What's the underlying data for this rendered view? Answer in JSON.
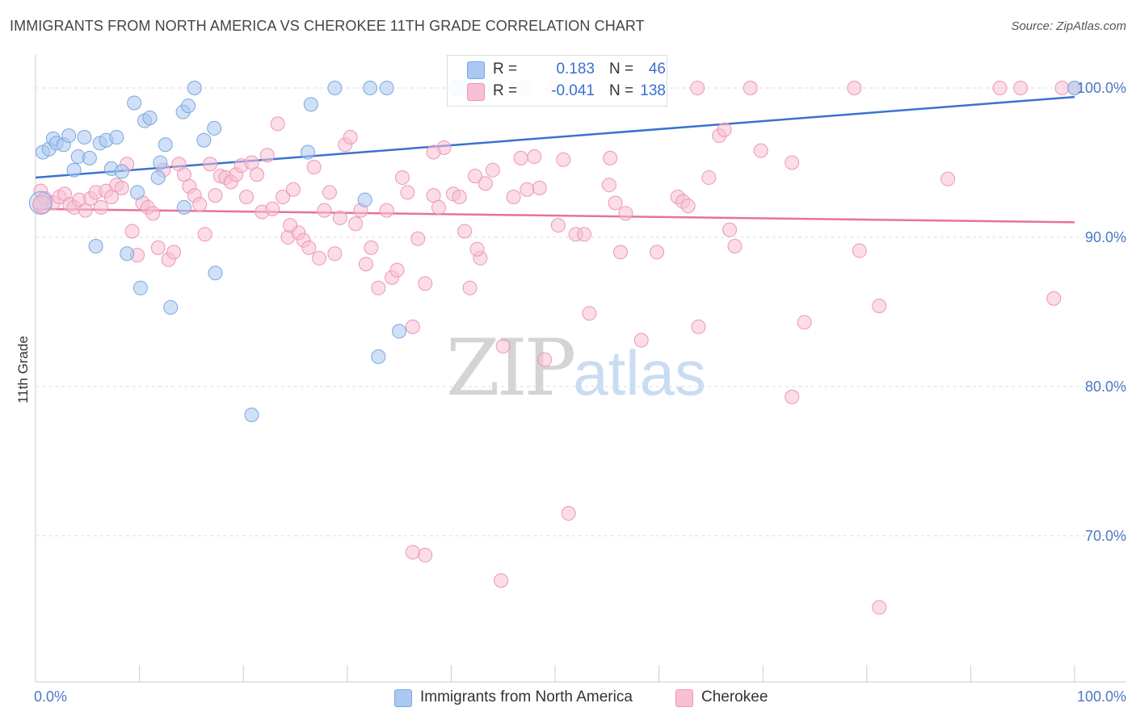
{
  "header": {
    "title": "IMMIGRANTS FROM NORTH AMERICA VS CHEROKEE 11TH GRADE CORRELATION CHART",
    "source": "Source: ZipAtlas.com"
  },
  "colors": {
    "blue_fill": "#aac8f0",
    "blue_stroke": "#7aa6e0",
    "blue_line": "#3a72d0",
    "pink_fill": "#f8c0d4",
    "pink_stroke": "#ec97b6",
    "pink_line": "#e57399",
    "grid": "#dddddd",
    "tick_text": "#4a78c8"
  },
  "legend_top": {
    "rows": [
      {
        "r_label": "R =",
        "r_value": "0.183",
        "n_label": "N =",
        "n_value": "46"
      },
      {
        "r_label": "R =",
        "r_value": "-0.041",
        "n_label": "N =",
        "n_value": "138"
      }
    ]
  },
  "watermark": {
    "zip": "ZIP",
    "atlas": "atlas"
  },
  "chart_data": {
    "type": "scatter",
    "title": "IMMIGRANTS FROM NORTH AMERICA VS CHEROKEE 11TH GRADE CORRELATION CHART",
    "xlabel": "",
    "ylabel": "11th Grade",
    "xlim": [
      0,
      100
    ],
    "ylim": [
      60.2,
      102
    ],
    "x_tick_labels": [
      "0.0%",
      "100.0%"
    ],
    "y_ticks": [
      70,
      80,
      90,
      100
    ],
    "y_tick_labels": [
      "70.0%",
      "80.0%",
      "90.0%",
      "100.0%"
    ],
    "legend": [
      "Immigrants from North America",
      "Cherokee"
    ],
    "series": [
      {
        "name": "Immigrants from North America",
        "color": "#aac8f0",
        "trend": {
          "x": [
            0,
            100
          ],
          "y": [
            94.0,
            99.4
          ]
        },
        "points": [
          [
            0.7,
            95.7
          ],
          [
            1.3,
            95.9
          ],
          [
            1.7,
            96.6
          ],
          [
            2.0,
            96.3
          ],
          [
            2.7,
            96.2
          ],
          [
            3.2,
            96.8
          ],
          [
            3.7,
            94.5
          ],
          [
            4.1,
            95.4
          ],
          [
            4.7,
            96.7
          ],
          [
            5.2,
            95.3
          ],
          [
            6.2,
            96.3
          ],
          [
            6.8,
            96.5
          ],
          [
            7.3,
            94.6
          ],
          [
            7.8,
            96.7
          ],
          [
            8.3,
            94.4
          ],
          [
            9.5,
            99.0
          ],
          [
            10.5,
            97.8
          ],
          [
            11.0,
            98.0
          ],
          [
            12.0,
            95.0
          ],
          [
            12.5,
            96.2
          ],
          [
            14.2,
            98.4
          ],
          [
            14.7,
            98.8
          ],
          [
            15.3,
            100.0
          ],
          [
            16.2,
            96.5
          ],
          [
            17.2,
            97.3
          ],
          [
            11.8,
            94.0
          ],
          [
            14.3,
            92.0
          ],
          [
            9.8,
            93.0
          ],
          [
            8.8,
            88.9
          ],
          [
            5.8,
            89.4
          ],
          [
            10.1,
            86.6
          ],
          [
            13.0,
            85.3
          ],
          [
            17.3,
            87.6
          ],
          [
            20.8,
            78.1
          ],
          [
            26.5,
            98.9
          ],
          [
            26.2,
            95.7
          ],
          [
            28.8,
            100.0
          ],
          [
            32.2,
            100.0
          ],
          [
            33.8,
            100.0
          ],
          [
            31.7,
            92.5
          ],
          [
            35.0,
            83.7
          ],
          [
            33.0,
            82.0
          ],
          [
            40.5,
            100.0
          ],
          [
            41.2,
            100.0
          ],
          [
            43.0,
            100.0
          ],
          [
            100.0,
            100.0
          ]
        ]
      },
      {
        "name": "Cherokee",
        "color": "#f8c0d4",
        "trend": {
          "x": [
            0,
            100
          ],
          "y": [
            91.9,
            91.0
          ]
        },
        "points": [
          [
            0.4,
            92.2
          ],
          [
            0.5,
            93.1
          ],
          [
            0.9,
            92.6
          ],
          [
            1.7,
            92.3
          ],
          [
            2.3,
            92.7
          ],
          [
            2.8,
            92.9
          ],
          [
            3.3,
            92.2
          ],
          [
            3.7,
            92.0
          ],
          [
            4.2,
            92.5
          ],
          [
            4.8,
            91.8
          ],
          [
            5.3,
            92.6
          ],
          [
            5.8,
            93.0
          ],
          [
            6.3,
            92.0
          ],
          [
            6.8,
            93.1
          ],
          [
            7.3,
            92.7
          ],
          [
            7.8,
            93.5
          ],
          [
            8.3,
            93.3
          ],
          [
            8.8,
            94.9
          ],
          [
            9.3,
            90.4
          ],
          [
            9.8,
            88.8
          ],
          [
            10.3,
            92.3
          ],
          [
            10.8,
            92.0
          ],
          [
            11.3,
            91.6
          ],
          [
            11.8,
            89.3
          ],
          [
            12.3,
            94.5
          ],
          [
            12.8,
            88.5
          ],
          [
            13.3,
            89.0
          ],
          [
            13.8,
            94.9
          ],
          [
            14.3,
            94.2
          ],
          [
            14.8,
            93.4
          ],
          [
            15.3,
            92.8
          ],
          [
            15.8,
            92.2
          ],
          [
            16.3,
            90.2
          ],
          [
            16.8,
            94.9
          ],
          [
            17.3,
            92.8
          ],
          [
            17.8,
            94.1
          ],
          [
            18.3,
            94.0
          ],
          [
            18.8,
            93.7
          ],
          [
            19.3,
            94.2
          ],
          [
            19.8,
            94.8
          ],
          [
            20.3,
            92.7
          ],
          [
            20.8,
            95.0
          ],
          [
            21.3,
            94.2
          ],
          [
            21.8,
            91.7
          ],
          [
            22.3,
            95.5
          ],
          [
            22.8,
            91.9
          ],
          [
            23.3,
            97.6
          ],
          [
            23.8,
            92.7
          ],
          [
            24.3,
            90.0
          ],
          [
            24.8,
            93.2
          ],
          [
            25.3,
            90.3
          ],
          [
            25.8,
            89.8
          ],
          [
            26.3,
            89.3
          ],
          [
            26.8,
            94.7
          ],
          [
            27.3,
            88.6
          ],
          [
            27.8,
            91.8
          ],
          [
            28.3,
            93.0
          ],
          [
            28.8,
            88.9
          ],
          [
            29.3,
            91.3
          ],
          [
            29.8,
            96.2
          ],
          [
            30.3,
            96.7
          ],
          [
            30.8,
            90.9
          ],
          [
            31.3,
            91.8
          ],
          [
            31.8,
            88.2
          ],
          [
            32.3,
            89.3
          ],
          [
            33.0,
            86.6
          ],
          [
            33.8,
            91.8
          ],
          [
            34.3,
            87.3
          ],
          [
            34.8,
            87.8
          ],
          [
            35.3,
            94.0
          ],
          [
            35.8,
            93.0
          ],
          [
            36.3,
            84.0
          ],
          [
            36.8,
            89.9
          ],
          [
            37.5,
            86.9
          ],
          [
            38.3,
            92.8
          ],
          [
            38.8,
            92.0
          ],
          [
            39.3,
            96.0
          ],
          [
            40.2,
            92.9
          ],
          [
            40.8,
            92.7
          ],
          [
            41.3,
            90.4
          ],
          [
            41.8,
            86.6
          ],
          [
            42.3,
            94.1
          ],
          [
            42.8,
            88.6
          ],
          [
            43.3,
            93.6
          ],
          [
            44.0,
            94.5
          ],
          [
            45.0,
            82.7
          ],
          [
            46.0,
            92.7
          ],
          [
            46.7,
            95.3
          ],
          [
            47.3,
            93.2
          ],
          [
            48.0,
            95.4
          ],
          [
            48.5,
            93.3
          ],
          [
            49.0,
            81.8
          ],
          [
            50.3,
            90.8
          ],
          [
            50.8,
            95.2
          ],
          [
            51.3,
            71.5
          ],
          [
            52.0,
            90.2
          ],
          [
            52.8,
            90.2
          ],
          [
            53.3,
            84.9
          ],
          [
            55.2,
            93.5
          ],
          [
            55.8,
            92.3
          ],
          [
            56.3,
            89.0
          ],
          [
            56.8,
            91.6
          ],
          [
            58.3,
            83.1
          ],
          [
            59.8,
            89.0
          ],
          [
            61.8,
            92.7
          ],
          [
            62.3,
            92.4
          ],
          [
            62.8,
            92.1
          ],
          [
            63.8,
            84.0
          ],
          [
            64.8,
            94.0
          ],
          [
            65.8,
            96.8
          ],
          [
            66.3,
            97.2
          ],
          [
            66.8,
            90.5
          ],
          [
            67.3,
            89.4
          ],
          [
            68.8,
            100.0
          ],
          [
            69.8,
            95.8
          ],
          [
            72.8,
            95.0
          ],
          [
            72.8,
            79.3
          ],
          [
            74.0,
            84.3
          ],
          [
            78.8,
            100.0
          ],
          [
            79.3,
            89.1
          ],
          [
            81.2,
            85.4
          ],
          [
            81.2,
            65.2
          ],
          [
            87.8,
            93.9
          ],
          [
            92.8,
            100.0
          ],
          [
            94.8,
            100.0
          ],
          [
            98.0,
            85.9
          ],
          [
            98.8,
            100.0
          ],
          [
            100.0,
            100.0
          ],
          [
            37.5,
            68.7
          ],
          [
            44.8,
            67.0
          ],
          [
            36.3,
            68.9
          ],
          [
            55.3,
            95.3
          ],
          [
            38.3,
            95.7
          ],
          [
            49.8,
            100.0
          ],
          [
            63.7,
            100.0
          ],
          [
            42.5,
            89.2
          ],
          [
            24.5,
            90.8
          ],
          [
            47.0,
            100.0
          ]
        ]
      }
    ]
  }
}
